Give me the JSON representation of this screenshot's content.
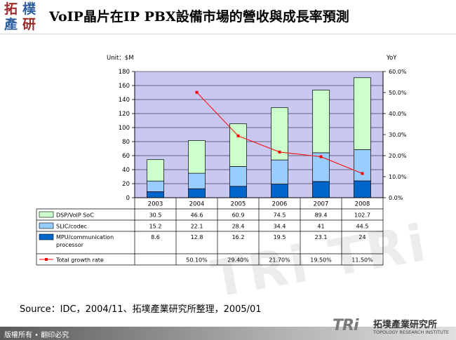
{
  "logo": {
    "chars": [
      "拓",
      "樸",
      "產",
      "研"
    ]
  },
  "page": {
    "title": "VoIP晶片在IP PBX設備市場的營收與成長率預測"
  },
  "chart_data": {
    "type": "bar",
    "stacked": true,
    "categories": [
      "2003",
      "2004",
      "2005",
      "2006",
      "2007",
      "2008"
    ],
    "series": [
      {
        "name": "DSP/VoIP SoC",
        "values": [
          30.5,
          46.6,
          60.9,
          74.5,
          89.4,
          102.7
        ],
        "color": "#ccffcc"
      },
      {
        "name": "SLIC/codec",
        "values": [
          15.2,
          22.1,
          28.4,
          34.4,
          41,
          44.5
        ],
        "color": "#99ccff"
      },
      {
        "name": "MPU/communication processor",
        "values": [
          8.6,
          12.8,
          16.2,
          19.5,
          23.1,
          24
        ],
        "color": "#0066cc"
      }
    ],
    "line_series": {
      "name": "Total growth rate",
      "values": [
        null,
        0.501,
        0.294,
        0.217,
        0.195,
        0.115
      ],
      "color": "#ff0000"
    },
    "table_rows": [
      [
        "30.5",
        "46.6",
        "60.9",
        "74.5",
        "89.4",
        "102.7"
      ],
      [
        "15.2",
        "22.1",
        "28.4",
        "34.4",
        "41",
        "44.5"
      ],
      [
        "8.6",
        "12.8",
        "16.2",
        "19.5",
        "23.1",
        "24"
      ],
      [
        "",
        "50.10%",
        "29.40%",
        "21.70%",
        "19.50%",
        "11.50%"
      ]
    ],
    "ylabel_left": "Unit：$M",
    "ylabel_right": "YoY",
    "ylim_left": [
      0,
      180
    ],
    "yticks_left": [
      "0",
      "20",
      "40",
      "60",
      "80",
      "100",
      "120",
      "140",
      "160",
      "180"
    ],
    "ylim_right": [
      0,
      0.6
    ],
    "yticks_right": [
      "0.0%",
      "10.0%",
      "20.0%",
      "30.0%",
      "40.0%",
      "50.0%",
      "60.0%"
    ],
    "grid": true,
    "plot_background": "#c8c8f0"
  },
  "source": "Source：IDC，2004/11、拓墣產業研究所整理，2005/01",
  "footer": {
    "left": "版權所有 • 翻印必究",
    "brand_tri": "TRi",
    "brand_cn": "拓墣產業研究所",
    "brand_en": "TOPOLOGY RESEARCH INSTITUTE"
  },
  "watermark": "TRi TRi"
}
